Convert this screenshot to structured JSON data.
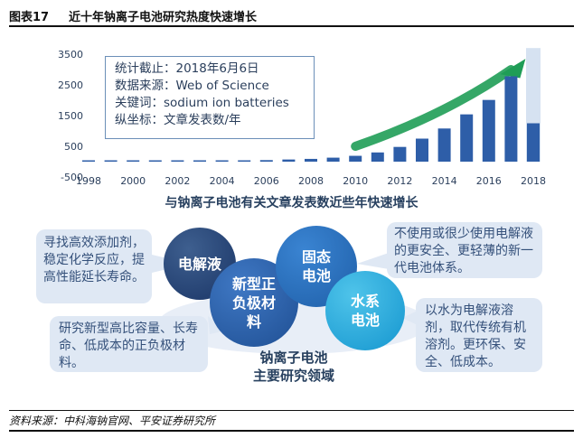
{
  "header": {
    "figure_number": "图表17",
    "title": "近十年钠离子电池研究热度快速增长"
  },
  "chart_data": {
    "type": "bar",
    "title": "近十年钠离子电池研究热度快速增长",
    "xlabel": "",
    "ylabel": "文章发表数/年",
    "ylim": [
      -500,
      3500
    ],
    "y_ticks": [
      3500,
      2500,
      1500,
      500,
      -500
    ],
    "x_ticks": [
      "1998",
      "2000",
      "2002",
      "2004",
      "2006",
      "2008",
      "2010",
      "2012",
      "2014",
      "2016",
      "2018"
    ],
    "categories": [
      "1998",
      "1999",
      "2000",
      "2001",
      "2002",
      "2003",
      "2004",
      "2005",
      "2006",
      "2007",
      "2008",
      "2009",
      "2010",
      "2011",
      "2012",
      "2013",
      "2014",
      "2015",
      "2016",
      "2017",
      "2018"
    ],
    "values": [
      5,
      5,
      10,
      10,
      15,
      20,
      25,
      35,
      50,
      70,
      90,
      130,
      190,
      300,
      480,
      750,
      1080,
      1540,
      2010,
      2780,
      1250
    ],
    "highlight": {
      "category": "2018",
      "value": 3700
    },
    "colors": {
      "bar": "#2e5ea8",
      "highlight": "#d6e2f1",
      "arrow": "#1f9d56"
    }
  },
  "info_box": {
    "lines": [
      "统计截止：2018年6月6日",
      "数据来源：Web of Science",
      "关键词：sodium ion batteries",
      "纵坐标：文章发表数/年"
    ]
  },
  "subtitle": "与钠离子电池有关文章发表数近些年快速增长",
  "diagram": {
    "center_title_1": "钠离子电池",
    "center_title_2": "主要研究领域",
    "circles": {
      "electrolyte": "电解液",
      "electrode": "新型正负极材料",
      "solid": "固态电池",
      "aqueous": "水系电池"
    },
    "notes": {
      "electrolyte": "寻找高效添加剂，稳定化学反应，提高性能延长寿命。",
      "electrode": "研究新型高比容量、长寿命、低成本的正负极材料。",
      "solid": "不使用或很少使用电解液的更安全、更轻薄的新一代电池体系。",
      "aqueous": "以水为电解液溶剂，取代传统有机溶剂。更环保、安全、低成本。"
    }
  },
  "source": "资料来源：中科海钠官网、平安证券研究所"
}
